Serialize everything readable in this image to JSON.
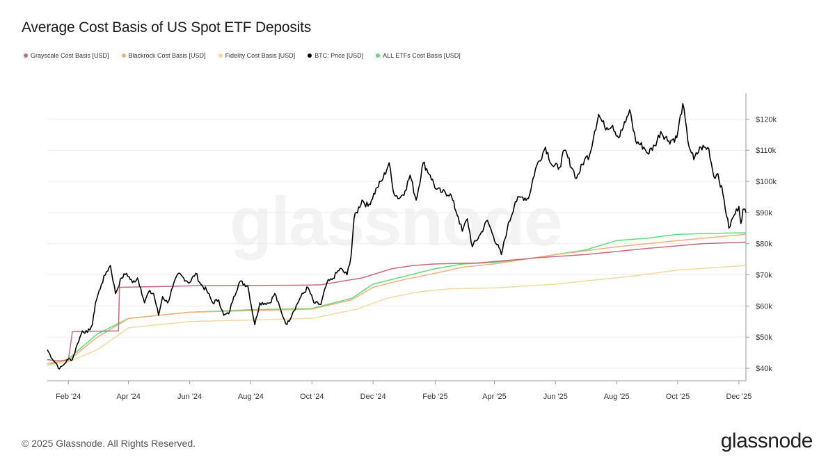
{
  "title": "Average Cost Basis of US Spot ETF Deposits",
  "footer": "© 2025 Glassnode. All Rights Reserved.",
  "brand": "glassnode",
  "watermark": "glassnode",
  "legend": [
    {
      "label": "Grayscale Cost Basis [USD]",
      "color": "#c96a7a"
    },
    {
      "label": "Blackrock Cost Basis [USD]",
      "color": "#f0b07a"
    },
    {
      "label": "Fidelity Cost Basis [USD]",
      "color": "#f3d9a0"
    },
    {
      "label": "BTC: Price [USD]",
      "color": "#000000"
    },
    {
      "label": "ALL ETFs Cost Basis [USD]",
      "color": "#5ddb7a"
    }
  ],
  "chart_data": {
    "type": "line",
    "title": "Average Cost Basis of US Spot ETF Deposits",
    "x_ticks": [
      "Feb '24",
      "Apr '24",
      "Jun '24",
      "Aug '24",
      "Oct '24",
      "Dec '24",
      "Feb '25",
      "Apr '25",
      "Jun '25",
      "Aug '25",
      "Oct '25",
      "Dec '25"
    ],
    "y_ticks": [
      "$40k",
      "$50k",
      "$60k",
      "$70k",
      "$80k",
      "$90k",
      "$100k",
      "$110k",
      "$120k"
    ],
    "ylim": [
      36000,
      127000
    ],
    "xlim": [
      "2024-01-11",
      "2025-12-08"
    ],
    "y_axis_side": "right",
    "grid": "horizontal",
    "series": [
      {
        "name": "BTC: Price [USD]",
        "color": "#000000",
        "x": [
          "2024-01-11",
          "2024-01-16",
          "2024-01-20",
          "2024-01-23",
          "2024-01-27",
          "2024-02-01",
          "2024-02-05",
          "2024-02-10",
          "2024-02-15",
          "2024-02-20",
          "2024-02-25",
          "2024-02-28",
          "2024-03-05",
          "2024-03-10",
          "2024-03-14",
          "2024-03-19",
          "2024-03-25",
          "2024-03-30",
          "2024-04-05",
          "2024-04-10",
          "2024-04-13",
          "2024-04-17",
          "2024-04-21",
          "2024-04-26",
          "2024-05-01",
          "2024-05-05",
          "2024-05-10",
          "2024-05-15",
          "2024-05-21",
          "2024-05-26",
          "2024-06-01",
          "2024-06-07",
          "2024-06-12",
          "2024-06-18",
          "2024-06-24",
          "2024-06-30",
          "2024-07-05",
          "2024-07-10",
          "2024-07-15",
          "2024-07-21",
          "2024-07-29",
          "2024-08-05",
          "2024-08-10",
          "2024-08-20",
          "2024-08-25",
          "2024-09-01",
          "2024-09-06",
          "2024-09-12",
          "2024-09-20",
          "2024-09-27",
          "2024-10-03",
          "2024-10-10",
          "2024-10-16",
          "2024-10-21",
          "2024-10-29",
          "2024-11-05",
          "2024-11-09",
          "2024-11-12",
          "2024-11-20",
          "2024-11-26",
          "2024-12-05",
          "2024-12-11",
          "2024-12-17",
          "2024-12-21",
          "2024-12-27",
          "2025-01-02",
          "2025-01-07",
          "2025-01-13",
          "2025-01-20",
          "2025-01-27",
          "2025-02-02",
          "2025-02-08",
          "2025-02-16",
          "2025-02-24",
          "2025-02-28",
          "2025-03-05",
          "2025-03-10",
          "2025-03-18",
          "2025-03-25",
          "2025-03-31",
          "2025-04-08",
          "2025-04-14",
          "2025-04-22",
          "2025-04-28",
          "2025-05-05",
          "2025-05-12",
          "2025-05-22",
          "2025-05-29",
          "2025-06-05",
          "2025-06-10",
          "2025-06-18",
          "2025-06-22",
          "2025-06-30",
          "2025-07-05",
          "2025-07-10",
          "2025-07-14",
          "2025-07-20",
          "2025-07-28",
          "2025-08-03",
          "2025-08-10",
          "2025-08-14",
          "2025-08-20",
          "2025-08-28",
          "2025-09-01",
          "2025-09-08",
          "2025-09-14",
          "2025-09-22",
          "2025-09-30",
          "2025-10-06",
          "2025-10-11",
          "2025-10-17",
          "2025-10-24",
          "2025-11-01",
          "2025-11-06",
          "2025-11-10",
          "2025-11-15",
          "2025-11-21",
          "2025-11-26",
          "2025-12-01",
          "2025-12-03",
          "2025-12-05",
          "2025-12-08"
        ],
        "values": [
          46000,
          43000,
          41500,
          39800,
          41000,
          43000,
          42800,
          47800,
          52000,
          51500,
          54000,
          61000,
          67000,
          71000,
          73000,
          64000,
          69000,
          70500,
          67500,
          69000,
          66000,
          61000,
          64500,
          64000,
          57000,
          63000,
          61000,
          66000,
          70500,
          69000,
          67500,
          70500,
          67000,
          65000,
          61000,
          62000,
          57000,
          57500,
          63000,
          67800,
          66500,
          54000,
          61000,
          61000,
          64000,
          57500,
          54000,
          58000,
          63000,
          66000,
          61000,
          60500,
          67500,
          68500,
          72000,
          70000,
          76000,
          88000,
          94000,
          92000,
          98000,
          101000,
          106000,
          97000,
          94500,
          97000,
          102000,
          94000,
          106000,
          102000,
          97500,
          96500,
          96000,
          88500,
          84000,
          88000,
          79000,
          83000,
          87500,
          82500,
          76500,
          85000,
          93500,
          95000,
          94500,
          104000,
          111000,
          105000,
          104500,
          110000,
          104000,
          101000,
          107000,
          108500,
          116000,
          121500,
          117500,
          118000,
          114000,
          119000,
          123000,
          113000,
          111000,
          109000,
          111500,
          116000,
          113000,
          114000,
          125000,
          113000,
          107000,
          111000,
          110500,
          101500,
          102500,
          96000,
          85000,
          89000,
          92000,
          86500,
          91000,
          90000
        ]
      },
      {
        "name": "Grayscale Cost Basis [USD]",
        "color": "#c96a7a",
        "x": [
          "2024-01-11",
          "2024-01-20",
          "2024-02-01",
          "2024-02-05",
          "2024-03-22",
          "2024-03-23",
          "2024-06-08",
          "2024-09-25",
          "2024-10-10",
          "2024-11-20",
          "2024-12-20",
          "2025-01-10",
          "2025-02-01",
          "2025-03-15",
          "2025-05-15",
          "2025-07-01",
          "2025-09-01",
          "2025-10-25",
          "2025-12-08"
        ],
        "values": [
          42800,
          42400,
          42500,
          51800,
          52000,
          66000,
          66500,
          66700,
          66800,
          69000,
          72000,
          73000,
          73500,
          73800,
          75500,
          76500,
          78500,
          80000,
          80500
        ]
      },
      {
        "name": "Blackrock Cost Basis [USD]",
        "color": "#f0b07a",
        "x": [
          "2024-01-11",
          "2024-02-01",
          "2024-03-01",
          "2024-04-01",
          "2024-06-01",
          "2024-08-01",
          "2024-10-01",
          "2024-11-10",
          "2024-12-01",
          "2025-01-01",
          "2025-02-01",
          "2025-03-01",
          "2025-04-01",
          "2025-06-01",
          "2025-08-01",
          "2025-10-01",
          "2025-12-08"
        ],
        "values": [
          41500,
          42500,
          50000,
          56000,
          58000,
          58500,
          59000,
          62000,
          66000,
          68500,
          70500,
          72500,
          73500,
          76500,
          79000,
          81000,
          83000
        ]
      },
      {
        "name": "Fidelity Cost Basis [USD]",
        "color": "#f3d9a0",
        "x": [
          "2024-01-11",
          "2024-02-01",
          "2024-03-01",
          "2024-04-01",
          "2024-06-01",
          "2024-08-01",
          "2024-10-01",
          "2024-11-15",
          "2024-12-15",
          "2025-01-15",
          "2025-02-15",
          "2025-04-01",
          "2025-06-01",
          "2025-07-15",
          "2025-08-15",
          "2025-10-01",
          "2025-12-08"
        ],
        "values": [
          41000,
          42000,
          46000,
          53000,
          55000,
          55500,
          56000,
          59000,
          62500,
          64500,
          65500,
          65800,
          67000,
          68500,
          69500,
          71500,
          73000
        ]
      },
      {
        "name": "ALL ETFs Cost Basis [USD]",
        "color": "#5ddb7a",
        "x": [
          "2024-01-11",
          "2024-02-01",
          "2024-03-01",
          "2024-04-01",
          "2024-06-01",
          "2024-08-01",
          "2024-10-01",
          "2024-11-10",
          "2024-12-01",
          "2025-01-01",
          "2025-02-01",
          "2025-03-01",
          "2025-04-01",
          "2025-05-01",
          "2025-07-01",
          "2025-08-01",
          "2025-09-01",
          "2025-10-01",
          "2025-11-01",
          "2025-12-08"
        ],
        "values": [
          41000,
          43000,
          51000,
          56000,
          58000,
          58800,
          59200,
          62500,
          67000,
          69500,
          72000,
          73500,
          74000,
          75000,
          78000,
          81000,
          81800,
          83000,
          83300,
          83500
        ]
      }
    ]
  }
}
